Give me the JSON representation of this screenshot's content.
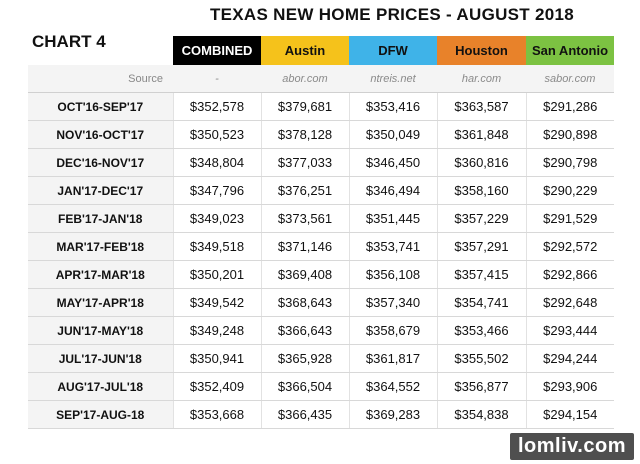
{
  "title": "TEXAS NEW HOME PRICES - AUGUST 2018",
  "chart_label": "CHART 4",
  "source_label": "Source",
  "watermark": "lomliv.com",
  "chart_data": {
    "type": "table",
    "columns": [
      {
        "name": "COMBINED",
        "source": "-",
        "header_bg": "#000000",
        "header_fg": "#ffffff"
      },
      {
        "name": "Austin",
        "source": "abor.com",
        "header_bg": "#f5c21b",
        "header_fg": "#111111"
      },
      {
        "name": "DFW",
        "source": "ntreis.net",
        "header_bg": "#3fb3e8",
        "header_fg": "#111111"
      },
      {
        "name": "Houston",
        "source": "har.com",
        "header_bg": "#e8822a",
        "header_fg": "#111111"
      },
      {
        "name": "San Antonio",
        "source": "sabor.com",
        "header_bg": "#7cc242",
        "header_fg": "#111111"
      }
    ],
    "rows": [
      {
        "period": "OCT'16-SEP'17",
        "values": [
          "$352,578",
          "$379,681",
          "$353,416",
          "$363,587",
          "$291,286"
        ]
      },
      {
        "period": "NOV'16-OCT'17",
        "values": [
          "$350,523",
          "$378,128",
          "$350,049",
          "$361,848",
          "$290,898"
        ]
      },
      {
        "period": "DEC'16-NOV'17",
        "values": [
          "$348,804",
          "$377,033",
          "$346,450",
          "$360,816",
          "$290,798"
        ]
      },
      {
        "period": "JAN'17-DEC'17",
        "values": [
          "$347,796",
          "$376,251",
          "$346,494",
          "$358,160",
          "$290,229"
        ]
      },
      {
        "period": "FEB'17-JAN'18",
        "values": [
          "$349,023",
          "$373,561",
          "$351,445",
          "$357,229",
          "$291,529"
        ]
      },
      {
        "period": "MAR'17-FEB'18",
        "values": [
          "$349,518",
          "$371,146",
          "$353,741",
          "$357,291",
          "$292,572"
        ]
      },
      {
        "period": "APR'17-MAR'18",
        "values": [
          "$350,201",
          "$369,408",
          "$356,108",
          "$357,415",
          "$292,866"
        ]
      },
      {
        "period": "MAY'17-APR'18",
        "values": [
          "$349,542",
          "$368,643",
          "$357,340",
          "$354,741",
          "$292,648"
        ]
      },
      {
        "period": "JUN'17-MAY'18",
        "values": [
          "$349,248",
          "$366,643",
          "$358,679",
          "$353,466",
          "$293,444"
        ]
      },
      {
        "period": "JUL'17-JUN'18",
        "values": [
          "$350,941",
          "$365,928",
          "$361,817",
          "$355,502",
          "$294,244"
        ]
      },
      {
        "period": "AUG'17-JUL'18",
        "values": [
          "$352,409",
          "$366,504",
          "$364,552",
          "$356,877",
          "$293,906"
        ]
      },
      {
        "period": "SEP'17-AUG-18",
        "values": [
          "$353,668",
          "$366,435",
          "$369,283",
          "$354,838",
          "$294,154"
        ]
      }
    ]
  }
}
